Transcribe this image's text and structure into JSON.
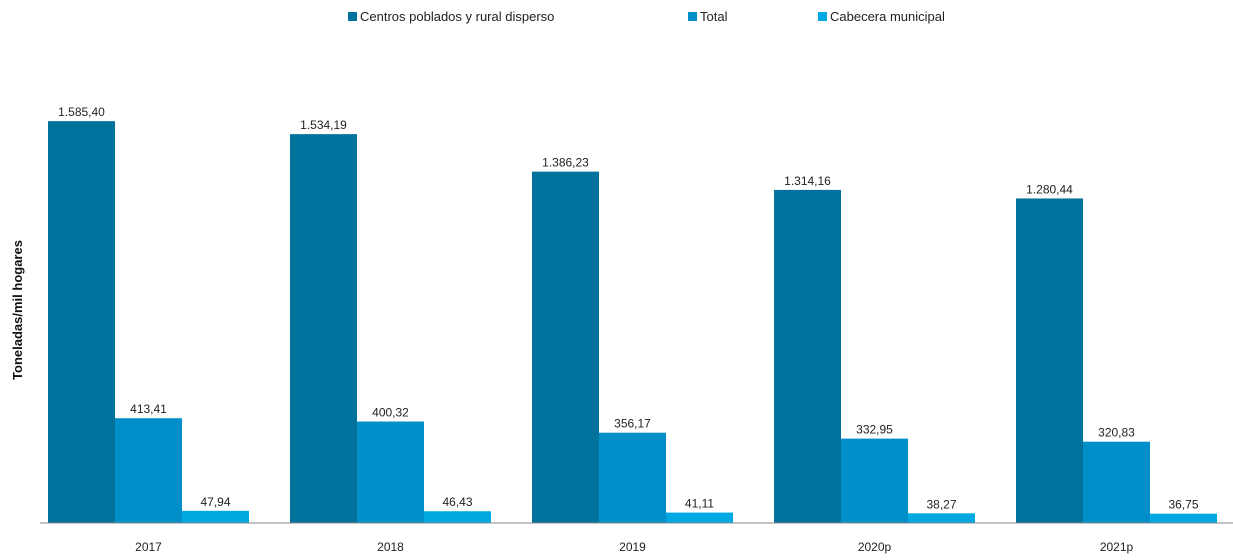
{
  "chart_data": {
    "type": "bar",
    "title": "",
    "xlabel": "",
    "ylabel": "Toneladas/mil hogares",
    "categories": [
      "2017",
      "2018",
      "2019",
      "2020p",
      "2021p"
    ],
    "series": [
      {
        "name": "Centros poblados y rural disperso",
        "color": "#00729b",
        "values": [
          1585.4,
          1534.19,
          1386.23,
          1314.16,
          1280.44
        ],
        "labels": [
          "1.585,40",
          "1.534,19",
          "1.386,23",
          "1.314,16",
          "1.280,44"
        ]
      },
      {
        "name": "Total",
        "color": "#008fc8",
        "values": [
          413.41,
          400.32,
          356.17,
          332.95,
          320.83
        ],
        "labels": [
          "413,41",
          "400,32",
          "356,17",
          "332,95",
          "320,83"
        ]
      },
      {
        "name": "Cabecera municipal",
        "color": "#00a8e2",
        "values": [
          47.94,
          46.43,
          41.11,
          38.27,
          36.75
        ],
        "labels": [
          "47,94",
          "46,43",
          "41,11",
          "38,27",
          "36,75"
        ]
      }
    ],
    "ylim": [
      0,
      1600
    ],
    "grid": false,
    "legend_position": "top-center"
  }
}
